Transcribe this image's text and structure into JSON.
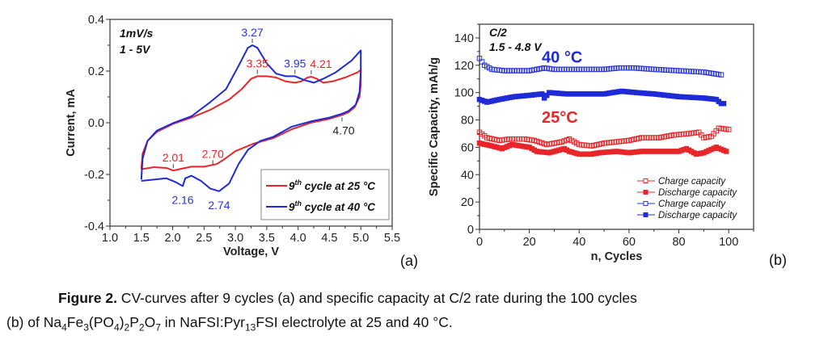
{
  "chart_data": [
    {
      "id": "a",
      "type": "line",
      "panel_label": "(a)",
      "xlabel": "Voltage, V",
      "ylabel": "Current, mA",
      "xlim": [
        1.0,
        5.5
      ],
      "ylim": [
        -0.4,
        0.4
      ],
      "xticks": [
        1.0,
        1.5,
        2.0,
        2.5,
        3.0,
        3.5,
        4.0,
        4.5,
        5.0,
        5.5
      ],
      "xtick_labels": [
        "1.0",
        "1.5",
        "2.0",
        "2.5",
        "3.0",
        "3.5",
        "4.0",
        "4.5",
        "5.0",
        "5.5"
      ],
      "yticks": [
        -0.4,
        -0.2,
        0.0,
        0.2,
        0.4
      ],
      "ytick_labels": [
        "-0.4",
        "-0.2",
        "0.0",
        "0.2",
        "0.4"
      ],
      "notes": [
        "1mV/s",
        "1 - 5V"
      ],
      "legend_position": "bottom-right",
      "series": [
        {
          "name": "9th cycle at 25 °C",
          "legend_sup": "th",
          "legend_prefix": "9",
          "legend_suffix": " cycle at 25 °C",
          "color": "#e8262a",
          "points": [
            [
              1.5,
              -0.18
            ],
            [
              1.52,
              -0.12
            ],
            [
              1.6,
              -0.07
            ],
            [
              1.75,
              -0.035
            ],
            [
              2.0,
              -0.005
            ],
            [
              2.3,
              0.02
            ],
            [
              2.6,
              0.05
            ],
            [
              2.9,
              0.09
            ],
            [
              3.1,
              0.13
            ],
            [
              3.25,
              0.17
            ],
            [
              3.35,
              0.18
            ],
            [
              3.5,
              0.18
            ],
            [
              3.65,
              0.175
            ],
            [
              3.8,
              0.16
            ],
            [
              3.95,
              0.155
            ],
            [
              4.05,
              0.16
            ],
            [
              4.15,
              0.175
            ],
            [
              4.21,
              0.178
            ],
            [
              4.3,
              0.17
            ],
            [
              4.4,
              0.155
            ],
            [
              4.55,
              0.16
            ],
            [
              4.75,
              0.175
            ],
            [
              4.95,
              0.195
            ],
            [
              5.0,
              0.205
            ],
            [
              5.0,
              0.15
            ],
            [
              4.98,
              0.1
            ],
            [
              4.9,
              0.06
            ],
            [
              4.8,
              0.04
            ],
            [
              4.7,
              0.03
            ],
            [
              4.5,
              0.015
            ],
            [
              4.2,
              0.0
            ],
            [
              3.9,
              -0.025
            ],
            [
              3.6,
              -0.06
            ],
            [
              3.3,
              -0.08
            ],
            [
              3.0,
              -0.11
            ],
            [
              2.8,
              -0.145
            ],
            [
              2.7,
              -0.16
            ],
            [
              2.5,
              -0.17
            ],
            [
              2.3,
              -0.17
            ],
            [
              2.2,
              -0.175
            ],
            [
              2.1,
              -0.18
            ],
            [
              2.01,
              -0.185
            ],
            [
              1.9,
              -0.175
            ],
            [
              1.7,
              -0.172
            ],
            [
              1.5,
              -0.18
            ]
          ]
        },
        {
          "name": "9th cycle at 40 °C",
          "legend_sup": "th",
          "legend_prefix": "9",
          "legend_suffix": " cycle at 40 °C",
          "color": "#1f2bd6",
          "points": [
            [
              1.5,
              -0.22
            ],
            [
              1.52,
              -0.14
            ],
            [
              1.6,
              -0.07
            ],
            [
              1.75,
              -0.03
            ],
            [
              2.0,
              -0.002
            ],
            [
              2.3,
              0.025
            ],
            [
              2.6,
              0.08
            ],
            [
              2.85,
              0.13
            ],
            [
              3.05,
              0.22
            ],
            [
              3.2,
              0.29
            ],
            [
              3.27,
              0.3
            ],
            [
              3.35,
              0.29
            ],
            [
              3.5,
              0.23
            ],
            [
              3.65,
              0.19
            ],
            [
              3.8,
              0.18
            ],
            [
              3.95,
              0.18
            ],
            [
              4.1,
              0.165
            ],
            [
              4.25,
              0.155
            ],
            [
              4.4,
              0.17
            ],
            [
              4.6,
              0.195
            ],
            [
              4.85,
              0.24
            ],
            [
              5.0,
              0.28
            ],
            [
              5.0,
              0.2
            ],
            [
              4.98,
              0.12
            ],
            [
              4.92,
              0.07
            ],
            [
              4.8,
              0.045
            ],
            [
              4.7,
              0.035
            ],
            [
              4.5,
              0.02
            ],
            [
              4.2,
              0.005
            ],
            [
              3.9,
              -0.015
            ],
            [
              3.6,
              -0.055
            ],
            [
              3.4,
              -0.07
            ],
            [
              3.2,
              -0.105
            ],
            [
              3.05,
              -0.16
            ],
            [
              2.9,
              -0.235
            ],
            [
              2.74,
              -0.265
            ],
            [
              2.6,
              -0.255
            ],
            [
              2.45,
              -0.225
            ],
            [
              2.3,
              -0.205
            ],
            [
              2.2,
              -0.215
            ],
            [
              2.16,
              -0.245
            ],
            [
              2.05,
              -0.23
            ],
            [
              1.9,
              -0.215
            ],
            [
              1.7,
              -0.22
            ],
            [
              1.5,
              -0.225
            ]
          ]
        }
      ],
      "annotations": [
        {
          "text": "3.27",
          "x": 3.27,
          "y": 0.3,
          "color": "#2a35d8",
          "series": "40 °C"
        },
        {
          "text": "3.35",
          "x": 3.35,
          "y": 0.18,
          "color": "#e8262a",
          "series": "25 °C"
        },
        {
          "text": "3.95",
          "x": 3.95,
          "y": 0.18,
          "color": "#2a35d8",
          "series": "40 °C"
        },
        {
          "text": "4.21",
          "x": 4.21,
          "y": 0.178,
          "color": "#e8262a",
          "series": "25 °C"
        },
        {
          "text": "4.70",
          "x": 4.7,
          "y": 0.03,
          "color": "#222222",
          "series": "both"
        },
        {
          "text": "2.01",
          "x": 2.01,
          "y": -0.185,
          "color": "#e8262a",
          "series": "25 °C"
        },
        {
          "text": "2.70",
          "x": 2.64,
          "y": -0.17,
          "color": "#e8262a",
          "series": "25 °C"
        },
        {
          "text": "2.16",
          "x": 2.16,
          "y": -0.245,
          "color": "#2a35d8",
          "series": "40 °C"
        },
        {
          "text": "2.74",
          "x": 2.74,
          "y": -0.265,
          "color": "#2a35d8",
          "series": "40 °C"
        }
      ]
    },
    {
      "id": "b",
      "type": "scatter",
      "panel_label": "(b)",
      "xlabel": "n, Cycles",
      "ylabel": "Specific Capacity, mAh/g",
      "xlim": [
        0,
        110
      ],
      "ylim": [
        0,
        150
      ],
      "xticks": [
        0,
        20,
        40,
        60,
        80,
        100
      ],
      "xtick_labels": [
        "0",
        "20",
        "40",
        "60",
        "80",
        "100"
      ],
      "yticks": [
        0,
        20,
        40,
        60,
        80,
        100,
        120,
        140
      ],
      "ytick_labels": [
        "0",
        "20",
        "40",
        "60",
        "80",
        "100",
        "120",
        "140"
      ],
      "notes": [
        "C/2",
        "1.5 - 4.8 V"
      ],
      "big_labels": [
        {
          "text": "40 °C",
          "color": "#1f2bd6"
        },
        {
          "text": "25°C",
          "color": "#e8262a"
        }
      ],
      "legend_position": "bottom-right",
      "series": [
        {
          "name": "Charge capacity",
          "temperature": "25 °C",
          "color": "#e8262a",
          "marker": "open-square",
          "x_range": [
            0,
            100
          ],
          "profile": [
            [
              0,
              71
            ],
            [
              3,
              67
            ],
            [
              8,
              65
            ],
            [
              12,
              66
            ],
            [
              18,
              66
            ],
            [
              22,
              65
            ],
            [
              27,
              62
            ],
            [
              33,
              64
            ],
            [
              36,
              66
            ],
            [
              40,
              62
            ],
            [
              45,
              61
            ],
            [
              50,
              63
            ],
            [
              55,
              64
            ],
            [
              60,
              65
            ],
            [
              65,
              67
            ],
            [
              72,
              67
            ],
            [
              78,
              69
            ],
            [
              84,
              70
            ],
            [
              88,
              71
            ],
            [
              90,
              67
            ],
            [
              93,
              68
            ],
            [
              96,
              74
            ],
            [
              100,
              73
            ]
          ]
        },
        {
          "name": "Discharge capacity",
          "temperature": "25 °C",
          "color": "#e8262a",
          "marker": "filled-square",
          "x_range": [
            0,
            99
          ],
          "profile": [
            [
              0,
              63
            ],
            [
              5,
              61
            ],
            [
              9,
              59
            ],
            [
              13,
              62
            ],
            [
              20,
              60
            ],
            [
              23,
              57
            ],
            [
              28,
              56
            ],
            [
              34,
              59
            ],
            [
              36,
              57
            ],
            [
              40,
              55
            ],
            [
              45,
              55
            ],
            [
              48,
              56
            ],
            [
              55,
              57
            ],
            [
              60,
              56
            ],
            [
              65,
              57
            ],
            [
              70,
              57
            ],
            [
              75,
              57
            ],
            [
              80,
              57
            ],
            [
              83,
              59
            ],
            [
              87,
              55
            ],
            [
              90,
              56
            ],
            [
              95,
              60
            ],
            [
              99,
              57
            ]
          ]
        },
        {
          "name": "Charge capacity",
          "temperature": "40 °C",
          "color": "#2a35d8",
          "marker": "open-square",
          "x_range": [
            0,
            97
          ],
          "profile": [
            [
              0,
              125
            ],
            [
              2,
              120
            ],
            [
              5,
              117
            ],
            [
              10,
              116
            ],
            [
              20,
              116
            ],
            [
              26,
              118
            ],
            [
              30,
              117
            ],
            [
              40,
              117
            ],
            [
              50,
              117
            ],
            [
              56,
              118
            ],
            [
              62,
              118
            ],
            [
              70,
              117
            ],
            [
              80,
              116
            ],
            [
              90,
              115
            ],
            [
              97,
              113
            ]
          ]
        },
        {
          "name": "Discharge capacity",
          "temperature": "40 °C",
          "color": "#1f2bd6",
          "marker": "filled-square",
          "x_range": [
            0,
            98
          ],
          "profile": [
            [
              0,
              95
            ],
            [
              3,
              93
            ],
            [
              8,
              95
            ],
            [
              14,
              97
            ],
            [
              20,
              98
            ],
            [
              25,
              99
            ],
            [
              26,
              96
            ],
            [
              28,
              100
            ],
            [
              35,
              99
            ],
            [
              45,
              99
            ],
            [
              50,
              99
            ],
            [
              57,
              101
            ],
            [
              63,
              100
            ],
            [
              70,
              99
            ],
            [
              80,
              97
            ],
            [
              90,
              96
            ],
            [
              95,
              95
            ],
            [
              97,
              92
            ]
          ]
        }
      ]
    }
  ],
  "caption": {
    "label": "Figure 2.",
    "line1": " CV-curves after 9 cycles (a) and specific capacity at C/2 rate during the 100 cycles",
    "line2_parts": [
      {
        "t": "(b) of Na"
      },
      {
        "sub": "4"
      },
      {
        "t": "Fe"
      },
      {
        "sub": "3"
      },
      {
        "t": "(PO"
      },
      {
        "sub": "4"
      },
      {
        "t": ")"
      },
      {
        "sub": "2"
      },
      {
        "t": "P"
      },
      {
        "sub": "2"
      },
      {
        "t": "O"
      },
      {
        "sub": "7"
      },
      {
        "t": " in NaFSI:Pyr"
      },
      {
        "sub": "13"
      },
      {
        "t": "FSI electrolyte at 25 and 40 °C."
      }
    ]
  }
}
